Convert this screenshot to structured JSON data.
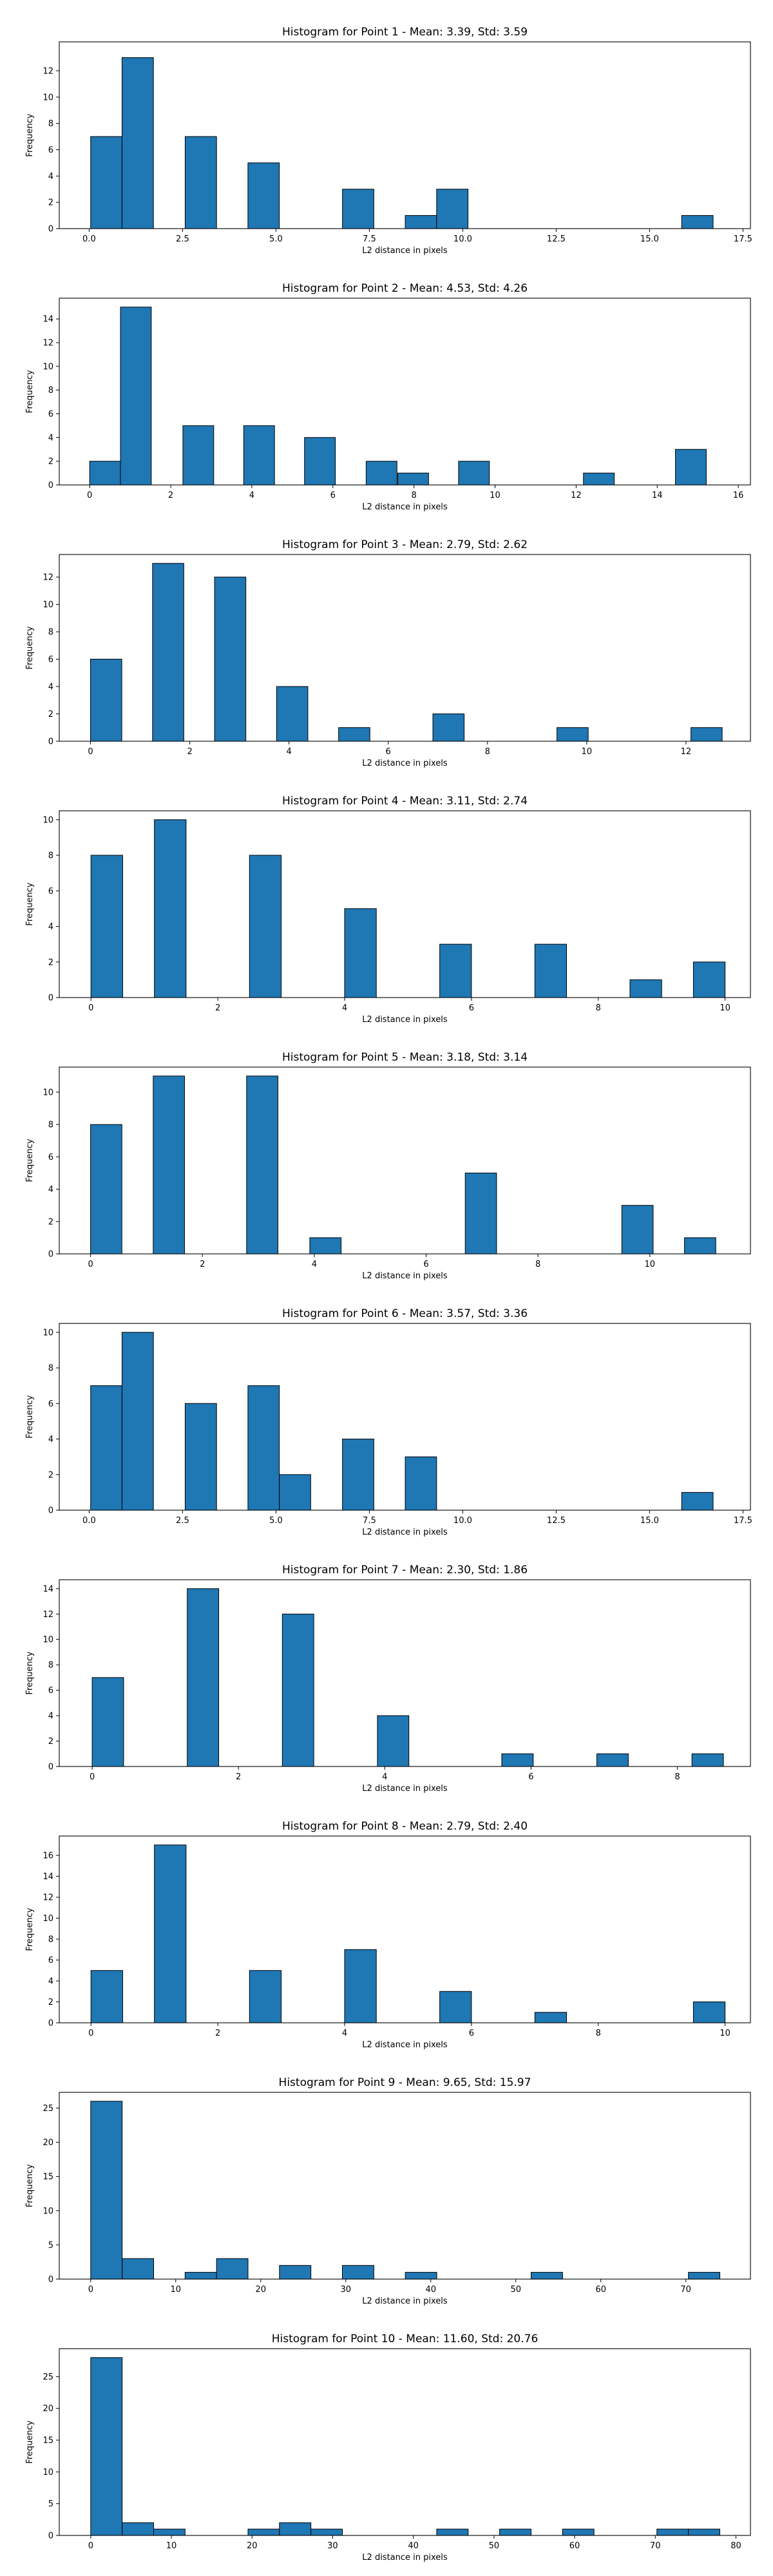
{
  "figure": {
    "bar_color": "#1f77b4",
    "edge_color": "#000000"
  },
  "chart_data": [
    {
      "type": "bar",
      "title": "Histogram for Point 1 - Mean: 3.39, Std: 3.59",
      "xlabel": "L2 distance in pixels",
      "ylabel": "Frequency",
      "xlim": [
        -0.8,
        17.7
      ],
      "ylim": [
        0,
        14.2
      ],
      "xticks": [
        0,
        2.5,
        5,
        7.5,
        10,
        12.5,
        15,
        17.5
      ],
      "xtick_labels": [
        "0.0",
        "2.5",
        "5.0",
        "7.5",
        "10.0",
        "12.5",
        "15.0",
        "17.5"
      ],
      "yticks": [
        0,
        2,
        4,
        6,
        8,
        10,
        12
      ],
      "bin_width": 0.84,
      "bins": [
        {
          "x": 0.04,
          "count": 7
        },
        {
          "x": 0.88,
          "count": 13
        },
        {
          "x": 2.57,
          "count": 7
        },
        {
          "x": 4.25,
          "count": 5
        },
        {
          "x": 6.78,
          "count": 3
        },
        {
          "x": 8.46,
          "count": 1
        },
        {
          "x": 9.3,
          "count": 3
        },
        {
          "x": 15.86,
          "count": 1
        }
      ]
    },
    {
      "type": "bar",
      "title": "Histogram for Point 2 - Mean: 4.53, Std: 4.26",
      "xlabel": "L2 distance in pixels",
      "ylabel": "Frequency",
      "xlim": [
        -0.75,
        16.3
      ],
      "ylim": [
        0,
        15.75
      ],
      "xticks": [
        0,
        2,
        4,
        6,
        8,
        10,
        12,
        14,
        16
      ],
      "xtick_labels": [
        "0",
        "2",
        "4",
        "6",
        "8",
        "10",
        "12",
        "14",
        "16"
      ],
      "yticks": [
        0,
        2,
        4,
        6,
        8,
        10,
        12,
        14
      ],
      "bin_width": 0.76,
      "bins": [
        {
          "x": 0,
          "count": 2
        },
        {
          "x": 0.76,
          "count": 15
        },
        {
          "x": 2.3,
          "count": 5
        },
        {
          "x": 3.8,
          "count": 5
        },
        {
          "x": 5.3,
          "count": 4
        },
        {
          "x": 6.82,
          "count": 2
        },
        {
          "x": 7.6,
          "count": 1
        },
        {
          "x": 9.1,
          "count": 2
        },
        {
          "x": 12.18,
          "count": 1
        },
        {
          "x": 14.45,
          "count": 3
        }
      ]
    },
    {
      "type": "bar",
      "title": "Histogram for Point 3 - Mean: 2.79, Std: 2.62",
      "xlabel": "L2 distance in pixels",
      "ylabel": "Frequency",
      "xlim": [
        -0.63,
        13.3
      ],
      "ylim": [
        0,
        13.65
      ],
      "xticks": [
        0,
        2,
        4,
        6,
        8,
        10,
        12
      ],
      "xtick_labels": [
        "0",
        "2",
        "4",
        "6",
        "8",
        "10",
        "12"
      ],
      "yticks": [
        0,
        2,
        4,
        6,
        8,
        10,
        12
      ],
      "bin_width": 0.63,
      "bins": [
        {
          "x": 0,
          "count": 6
        },
        {
          "x": 1.25,
          "count": 13
        },
        {
          "x": 2.5,
          "count": 12
        },
        {
          "x": 3.75,
          "count": 4
        },
        {
          "x": 5.0,
          "count": 1
        },
        {
          "x": 6.9,
          "count": 2
        },
        {
          "x": 9.4,
          "count": 1
        },
        {
          "x": 12.1,
          "count": 1
        }
      ]
    },
    {
      "type": "bar",
      "title": "Histogram for Point 4 - Mean: 3.11, Std: 2.74",
      "xlabel": "L2 distance in pixels",
      "ylabel": "Frequency",
      "xlim": [
        -0.5,
        10.4
      ],
      "ylim": [
        0,
        10.5
      ],
      "xticks": [
        0,
        2,
        4,
        6,
        8,
        10
      ],
      "xtick_labels": [
        "0",
        "2",
        "4",
        "6",
        "8",
        "10"
      ],
      "yticks": [
        0,
        2,
        4,
        6,
        8,
        10
      ],
      "bin_width": 0.5,
      "bins": [
        {
          "x": 0,
          "count": 8
        },
        {
          "x": 1.0,
          "count": 10
        },
        {
          "x": 2.5,
          "count": 8
        },
        {
          "x": 4.0,
          "count": 5
        },
        {
          "x": 5.5,
          "count": 3
        },
        {
          "x": 7.0,
          "count": 3
        },
        {
          "x": 8.5,
          "count": 1
        },
        {
          "x": 9.5,
          "count": 2
        }
      ]
    },
    {
      "type": "bar",
      "title": "Histogram for Point 5 - Mean: 3.18, Std: 3.14",
      "xlabel": "L2 distance in pixels",
      "ylabel": "Frequency",
      "xlim": [
        -0.56,
        11.8
      ],
      "ylim": [
        0,
        11.55
      ],
      "xticks": [
        0,
        2,
        4,
        6,
        8,
        10
      ],
      "xtick_labels": [
        "0",
        "2",
        "4",
        "6",
        "8",
        "10"
      ],
      "yticks": [
        0,
        2,
        4,
        6,
        8,
        10
      ],
      "bin_width": 0.56,
      "bins": [
        {
          "x": 0,
          "count": 8
        },
        {
          "x": 1.12,
          "count": 11
        },
        {
          "x": 2.79,
          "count": 11
        },
        {
          "x": 3.92,
          "count": 1
        },
        {
          "x": 6.7,
          "count": 5
        },
        {
          "x": 9.5,
          "count": 3
        },
        {
          "x": 10.62,
          "count": 1
        }
      ]
    },
    {
      "type": "bar",
      "title": "Histogram for Point 6 - Mean: 3.57, Std: 3.36",
      "xlabel": "L2 distance in pixels",
      "ylabel": "Frequency",
      "xlim": [
        -0.8,
        17.7
      ],
      "ylim": [
        0,
        10.5
      ],
      "xticks": [
        0,
        2.5,
        5,
        7.5,
        10,
        12.5,
        15,
        17.5
      ],
      "xtick_labels": [
        "0.0",
        "2.5",
        "5.0",
        "7.5",
        "10.0",
        "12.5",
        "15.0",
        "17.5"
      ],
      "yticks": [
        0,
        2,
        4,
        6,
        8,
        10
      ],
      "bin_width": 0.84,
      "bins": [
        {
          "x": 0.04,
          "count": 7
        },
        {
          "x": 0.88,
          "count": 10
        },
        {
          "x": 2.57,
          "count": 6
        },
        {
          "x": 4.25,
          "count": 7
        },
        {
          "x": 5.09,
          "count": 2
        },
        {
          "x": 6.78,
          "count": 4
        },
        {
          "x": 8.46,
          "count": 3
        },
        {
          "x": 15.86,
          "count": 1
        }
      ]
    },
    {
      "type": "bar",
      "title": "Histogram for Point 7 - Mean: 2.30, Std: 1.86",
      "xlabel": "L2 distance in pixels",
      "ylabel": "Frequency",
      "xlim": [
        -0.45,
        9.0
      ],
      "ylim": [
        0,
        14.7
      ],
      "xticks": [
        0,
        2,
        4,
        6,
        8
      ],
      "xtick_labels": [
        "0",
        "2",
        "4",
        "6",
        "8"
      ],
      "yticks": [
        0,
        2,
        4,
        6,
        8,
        10,
        12,
        14
      ],
      "bin_width": 0.43,
      "bins": [
        {
          "x": 0,
          "count": 7
        },
        {
          "x": 1.3,
          "count": 14
        },
        {
          "x": 2.6,
          "count": 12
        },
        {
          "x": 3.9,
          "count": 4
        },
        {
          "x": 5.6,
          "count": 1
        },
        {
          "x": 6.9,
          "count": 1
        },
        {
          "x": 8.2,
          "count": 1
        }
      ]
    },
    {
      "type": "bar",
      "title": "Histogram for Point 8 - Mean: 2.79, Std: 2.40",
      "xlabel": "L2 distance in pixels",
      "ylabel": "Frequency",
      "xlim": [
        -0.5,
        10.4
      ],
      "ylim": [
        0,
        17.85
      ],
      "xticks": [
        0,
        2,
        4,
        6,
        8,
        10
      ],
      "xtick_labels": [
        "0",
        "2",
        "4",
        "6",
        "8",
        "10"
      ],
      "yticks": [
        0,
        2,
        4,
        6,
        8,
        10,
        12,
        14,
        16
      ],
      "bin_width": 0.5,
      "bins": [
        {
          "x": 0,
          "count": 5
        },
        {
          "x": 1.0,
          "count": 17
        },
        {
          "x": 2.5,
          "count": 5
        },
        {
          "x": 4.0,
          "count": 7
        },
        {
          "x": 5.5,
          "count": 3
        },
        {
          "x": 7.0,
          "count": 1
        },
        {
          "x": 9.5,
          "count": 2
        }
      ]
    },
    {
      "type": "bar",
      "title": "Histogram for Point 9 - Mean: 9.65, Std: 15.97",
      "xlabel": "L2 distance in pixels",
      "ylabel": "Frequency",
      "xlim": [
        -3.7,
        77.6
      ],
      "ylim": [
        0,
        27.3
      ],
      "xticks": [
        0,
        10,
        20,
        30,
        40,
        50,
        60,
        70
      ],
      "xtick_labels": [
        "0",
        "10",
        "20",
        "30",
        "40",
        "50",
        "60",
        "70"
      ],
      "yticks": [
        0,
        5,
        10,
        15,
        20,
        25
      ],
      "bin_width": 3.7,
      "bins": [
        {
          "x": 0,
          "count": 26
        },
        {
          "x": 3.7,
          "count": 3
        },
        {
          "x": 11.1,
          "count": 1
        },
        {
          "x": 14.8,
          "count": 3
        },
        {
          "x": 22.2,
          "count": 2
        },
        {
          "x": 29.6,
          "count": 2
        },
        {
          "x": 37.0,
          "count": 1
        },
        {
          "x": 51.8,
          "count": 1
        },
        {
          "x": 70.3,
          "count": 1
        }
      ]
    },
    {
      "type": "bar",
      "title": "Histogram for Point 10 - Mean: 11.60, Std: 20.76",
      "xlabel": "L2 distance in pixels",
      "ylabel": "Frequency",
      "xlim": [
        -3.9,
        81.8
      ],
      "ylim": [
        0,
        29.4
      ],
      "xticks": [
        0,
        10,
        20,
        30,
        40,
        50,
        60,
        70,
        80
      ],
      "xtick_labels": [
        "0",
        "10",
        "20",
        "30",
        "40",
        "50",
        "60",
        "70",
        "80"
      ],
      "yticks": [
        0,
        5,
        10,
        15,
        20,
        25
      ],
      "bin_width": 3.9,
      "bins": [
        {
          "x": 0,
          "count": 28
        },
        {
          "x": 3.9,
          "count": 2
        },
        {
          "x": 7.8,
          "count": 1
        },
        {
          "x": 19.5,
          "count": 1
        },
        {
          "x": 23.4,
          "count": 2
        },
        {
          "x": 27.3,
          "count": 1
        },
        {
          "x": 42.9,
          "count": 1
        },
        {
          "x": 50.7,
          "count": 1
        },
        {
          "x": 58.5,
          "count": 1
        },
        {
          "x": 70.2,
          "count": 1
        },
        {
          "x": 74.1,
          "count": 1
        }
      ]
    }
  ]
}
